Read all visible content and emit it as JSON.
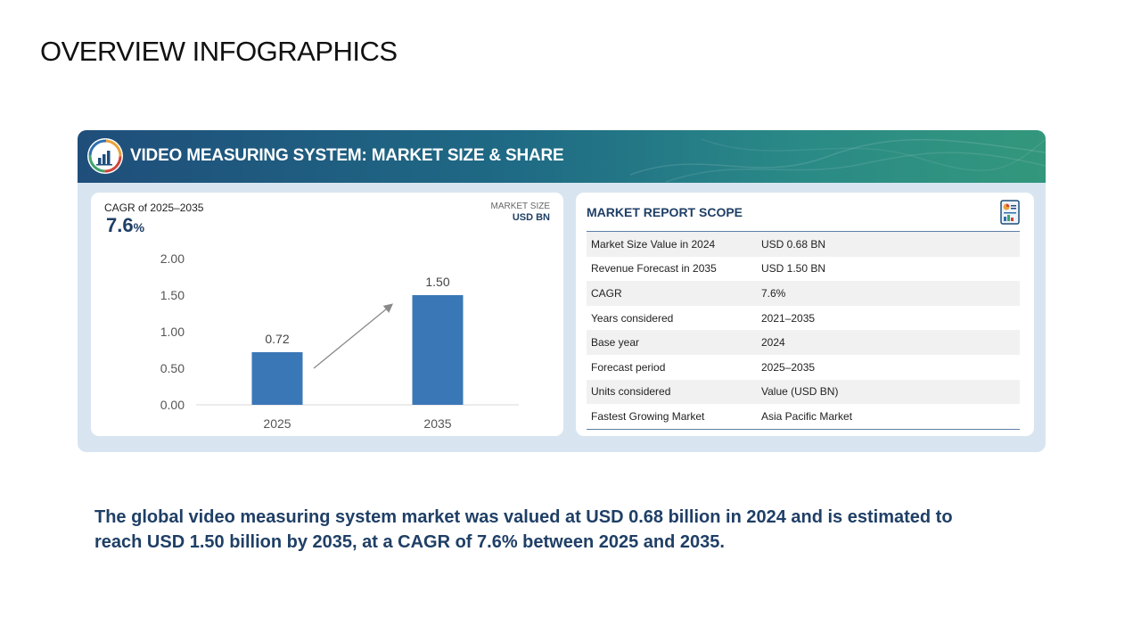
{
  "page_title": "OVERVIEW INFOGRAPHICS",
  "banner": {
    "title": "VIDEO MEASURING SYSTEM: MARKET SIZE & SHARE",
    "icon": "bar-chart-gauge-icon"
  },
  "cagr": {
    "label": "CAGR of 2025–2035",
    "value": "7.6",
    "suffix": "%"
  },
  "market_size": {
    "label": "MARKET SIZE",
    "unit": "USD BN"
  },
  "chart_data": {
    "type": "bar",
    "categories": [
      "2025",
      "2035"
    ],
    "values": [
      0.72,
      1.5
    ],
    "value_labels": [
      "0.72",
      "1.50"
    ],
    "yticks": [
      "0.00",
      "0.50",
      "1.00",
      "1.50",
      "2.00"
    ],
    "ylim": [
      0,
      2.0
    ],
    "bar_color": "#3a77b7",
    "grid": false,
    "annotation": "growth-arrow"
  },
  "scope": {
    "title": "MARKET REPORT SCOPE",
    "icon": "report-document-icon",
    "rows": [
      {
        "key": "Market Size Value in 2024",
        "value": "USD 0.68 BN"
      },
      {
        "key": "Revenue Forecast in 2035",
        "value": "USD 1.50 BN"
      },
      {
        "key": "CAGR",
        "value": "7.6%"
      },
      {
        "key": "Years considered",
        "value": "2021–2035"
      },
      {
        "key": "Base year",
        "value": "2024"
      },
      {
        "key": "Forecast period",
        "value": "2025–2035"
      },
      {
        "key": "Units considered",
        "value": "Value (USD BN)"
      },
      {
        "key": "Fastest Growing Market",
        "value": "Asia Pacific Market"
      }
    ]
  },
  "summary": "The global video measuring system market was valued at USD 0.68 billion in 2024 and is estimated to reach USD 1.50 billion by 2035, at a CAGR of 7.6% between 2025 and 2035."
}
